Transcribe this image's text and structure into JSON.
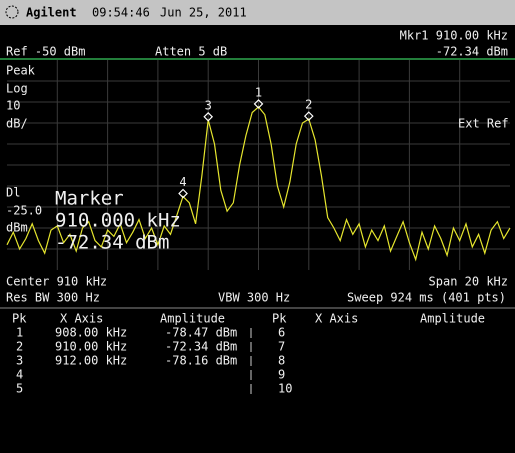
{
  "header": {
    "brand": "Agilent",
    "time": "09:54:46",
    "date": "Jun 25, 2011"
  },
  "status": {
    "marker_freq": "Mkr1  910.00 kHz",
    "marker_amp": "-72.34 dBm",
    "ref": "Ref -50 dBm",
    "atten": "Atten 5 dB",
    "mode": [
      "Peak",
      "Log",
      "10",
      "dB/"
    ],
    "ext_ref": "Ext Ref",
    "display_line": [
      "Dl",
      "-25.0",
      "dBm"
    ]
  },
  "marker_box": {
    "title": "Marker",
    "freq": "910.000 kHz",
    "amp": "-72.34 dBm"
  },
  "footer": {
    "center": "Center 910 kHz",
    "span": "Span 20 kHz",
    "rbw": "Res BW 300 Hz",
    "vbw": "VBW 300 Hz",
    "sweep": "Sweep 924 ms (401 pts)"
  },
  "table": {
    "headers": [
      "Pk",
      "X Axis",
      "Amplitude",
      "Pk",
      "X Axis",
      "Amplitude"
    ],
    "rows": [
      {
        "left": [
          "1",
          "908.00 kHz",
          "-78.47 dBm"
        ],
        "right": [
          "6"
        ]
      },
      {
        "left": [
          "2",
          "910.00 kHz",
          "-72.34 dBm"
        ],
        "right": [
          "7"
        ]
      },
      {
        "left": [
          "3",
          "912.00 kHz",
          "-78.16 dBm"
        ],
        "right": [
          "8"
        ]
      },
      {
        "left": [
          "4"
        ],
        "right": [
          "9"
        ]
      },
      {
        "left": [
          "5"
        ],
        "right": [
          "10"
        ]
      }
    ]
  },
  "trace": {
    "color": "#e6e62e",
    "xlim": [
      900,
      920
    ],
    "ylim": [
      -150,
      -50
    ],
    "x": [
      900,
      900.25,
      900.5,
      900.75,
      901,
      901.25,
      901.5,
      901.75,
      902,
      902.25,
      902.5,
      902.75,
      903,
      903.25,
      903.5,
      903.75,
      904,
      904.25,
      904.5,
      904.75,
      905,
      905.25,
      905.5,
      905.75,
      906,
      906.25,
      906.5,
      906.75,
      907,
      907.25,
      907.5,
      907.75,
      908,
      908.25,
      908.5,
      908.75,
      909,
      909.25,
      909.5,
      909.75,
      910,
      910.25,
      910.5,
      910.75,
      911,
      911.25,
      911.5,
      911.75,
      912,
      912.25,
      912.5,
      912.75,
      913,
      913.25,
      913.5,
      913.75,
      914,
      914.25,
      914.5,
      914.75,
      915,
      915.25,
      915.5,
      915.75,
      916,
      916.25,
      916.5,
      916.75,
      917,
      917.25,
      917.5,
      917.75,
      918,
      918.25,
      918.5,
      918.75,
      919,
      919.25,
      919.5,
      919.75,
      920
    ],
    "y": [
      -138,
      -132,
      -140,
      -135,
      -128,
      -136,
      -142,
      -131,
      -129,
      -137,
      -133,
      -141,
      -130,
      -127,
      -136,
      -139,
      -131,
      -134,
      -128,
      -137,
      -132,
      -126,
      -135,
      -130,
      -138,
      -129,
      -133,
      -124,
      -115,
      -118,
      -128,
      -105,
      -78.47,
      -90,
      -112,
      -122,
      -118,
      -100,
      -86,
      -75,
      -72.34,
      -76,
      -90,
      -110,
      -120,
      -108,
      -90,
      -80,
      -78.16,
      -88,
      -105,
      -125,
      -130,
      -136,
      -126,
      -133,
      -128,
      -139,
      -131,
      -136,
      -129,
      -141,
      -134,
      -127,
      -137,
      -145,
      -132,
      -140,
      -129,
      -135,
      -143,
      -130,
      -136,
      -128,
      -139,
      -133,
      -142,
      -131,
      -127,
      -135,
      -130
    ],
    "markers": [
      {
        "label": "1",
        "x": 910,
        "y": -72.34
      },
      {
        "label": "2",
        "x": 912,
        "y": -78.16
      },
      {
        "label": "3",
        "x": 908,
        "y": -78.47
      },
      {
        "label": "4",
        "x": 907,
        "y": -115
      }
    ]
  }
}
